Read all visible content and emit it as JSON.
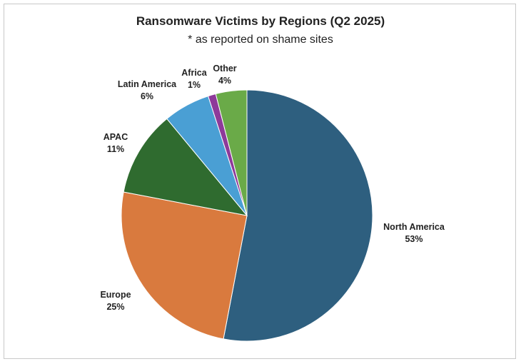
{
  "chart_data": {
    "type": "pie",
    "title": "Ransomware Victims by Regions (Q2 2025)",
    "subtitle": "* as reported on shame sites",
    "slices": [
      {
        "label": "North America",
        "value": 53,
        "pct_label": "53%",
        "color": "#2e5f7f"
      },
      {
        "label": "Europe",
        "value": 25,
        "pct_label": "25%",
        "color": "#d97a3e"
      },
      {
        "label": "APAC",
        "value": 11,
        "pct_label": "11%",
        "color": "#2f6b2f"
      },
      {
        "label": "Latin America",
        "value": 6,
        "pct_label": "6%",
        "color": "#4a9fd4"
      },
      {
        "label": "Africa",
        "value": 1,
        "pct_label": "1%",
        "color": "#8e3a9a"
      },
      {
        "label": "Other",
        "value": 4,
        "pct_label": "4%",
        "color": "#6aaa48"
      }
    ]
  }
}
